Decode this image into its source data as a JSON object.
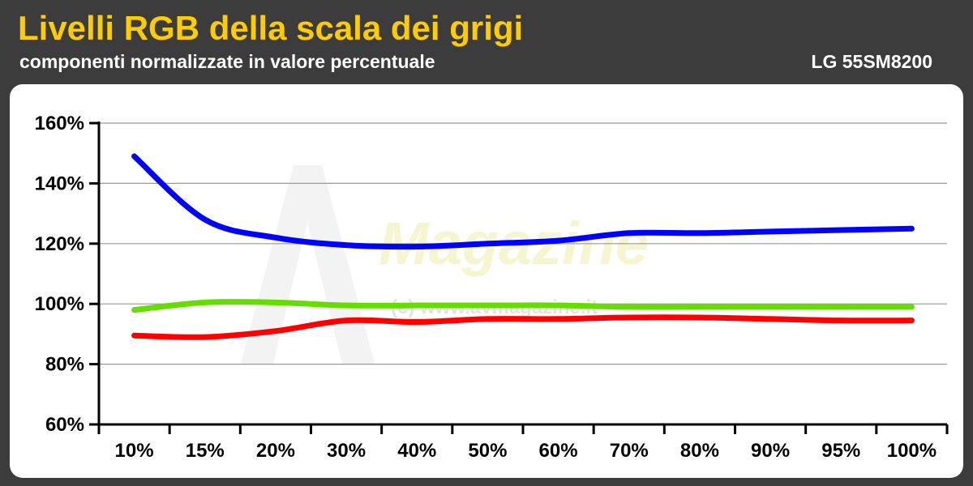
{
  "header": {
    "title": "Livelli RGB della scala dei grigi",
    "subtitle": "componenti normalizzate in valore percentuale",
    "model": "LG 55SM8200"
  },
  "watermark": {
    "logo_text": "Magazine",
    "url_text": "(c) www.avmagazine.it"
  },
  "chart_data": {
    "type": "line",
    "categories": [
      "10%",
      "15%",
      "20%",
      "30%",
      "40%",
      "50%",
      "60%",
      "70%",
      "80%",
      "90%",
      "95%",
      "100%"
    ],
    "series": [
      {
        "values": [
          149,
          128,
          122,
          119.5,
          119,
          120,
          121,
          123.5,
          123.5,
          124,
          124.5,
          125
        ],
        "color": "#0000ff"
      },
      {
        "values": [
          98,
          100.5,
          100.5,
          99.5,
          99.5,
          99.5,
          99.5,
          99,
          99,
          99,
          99,
          99
        ],
        "color": "#66dd00"
      },
      {
        "values": [
          89.5,
          89,
          91,
          94.5,
          94,
          95,
          95,
          95.5,
          95.5,
          95,
          94.5,
          94.5
        ],
        "color": "#ff0000"
      }
    ],
    "y_ticks": [
      "60%",
      "80%",
      "100%",
      "120%",
      "140%",
      "160%"
    ],
    "ylim": [
      60,
      160
    ],
    "grid": true,
    "legend": "none"
  }
}
